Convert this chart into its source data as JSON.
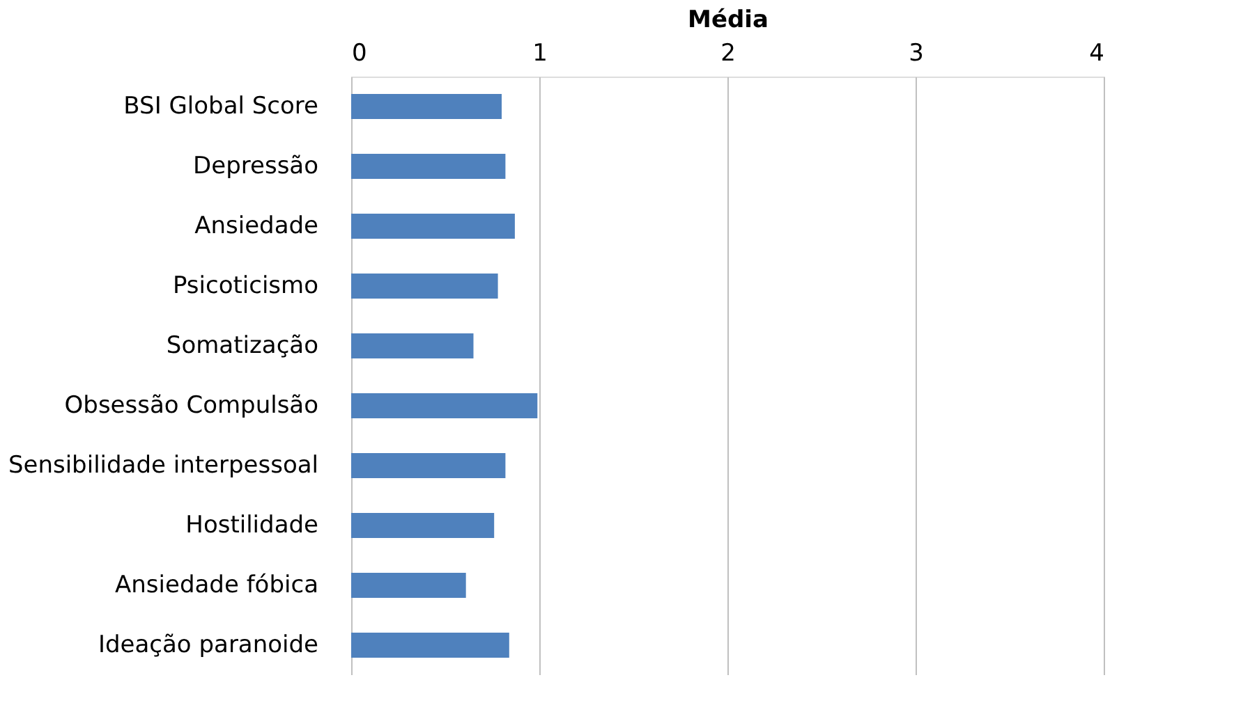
{
  "chart_data": {
    "type": "bar",
    "orientation": "horizontal",
    "xlabel": "Média",
    "categories": [
      "BSI Global Score",
      "Depressão",
      "Ansiedade",
      "Psicoticismo",
      "Somatização",
      "Obsessão Compulsão",
      "Sensibilidade interpessoal",
      "Hostilidade",
      "Ansiedade fóbica",
      "Ideação paranoide"
    ],
    "values": [
      0.8,
      0.82,
      0.87,
      0.78,
      0.65,
      0.99,
      0.82,
      0.76,
      0.61,
      0.84
    ],
    "color": "#4f81bd",
    "xlim": [
      0,
      4
    ],
    "xticks": [
      0,
      1,
      2,
      3,
      4
    ],
    "grid": "x"
  }
}
